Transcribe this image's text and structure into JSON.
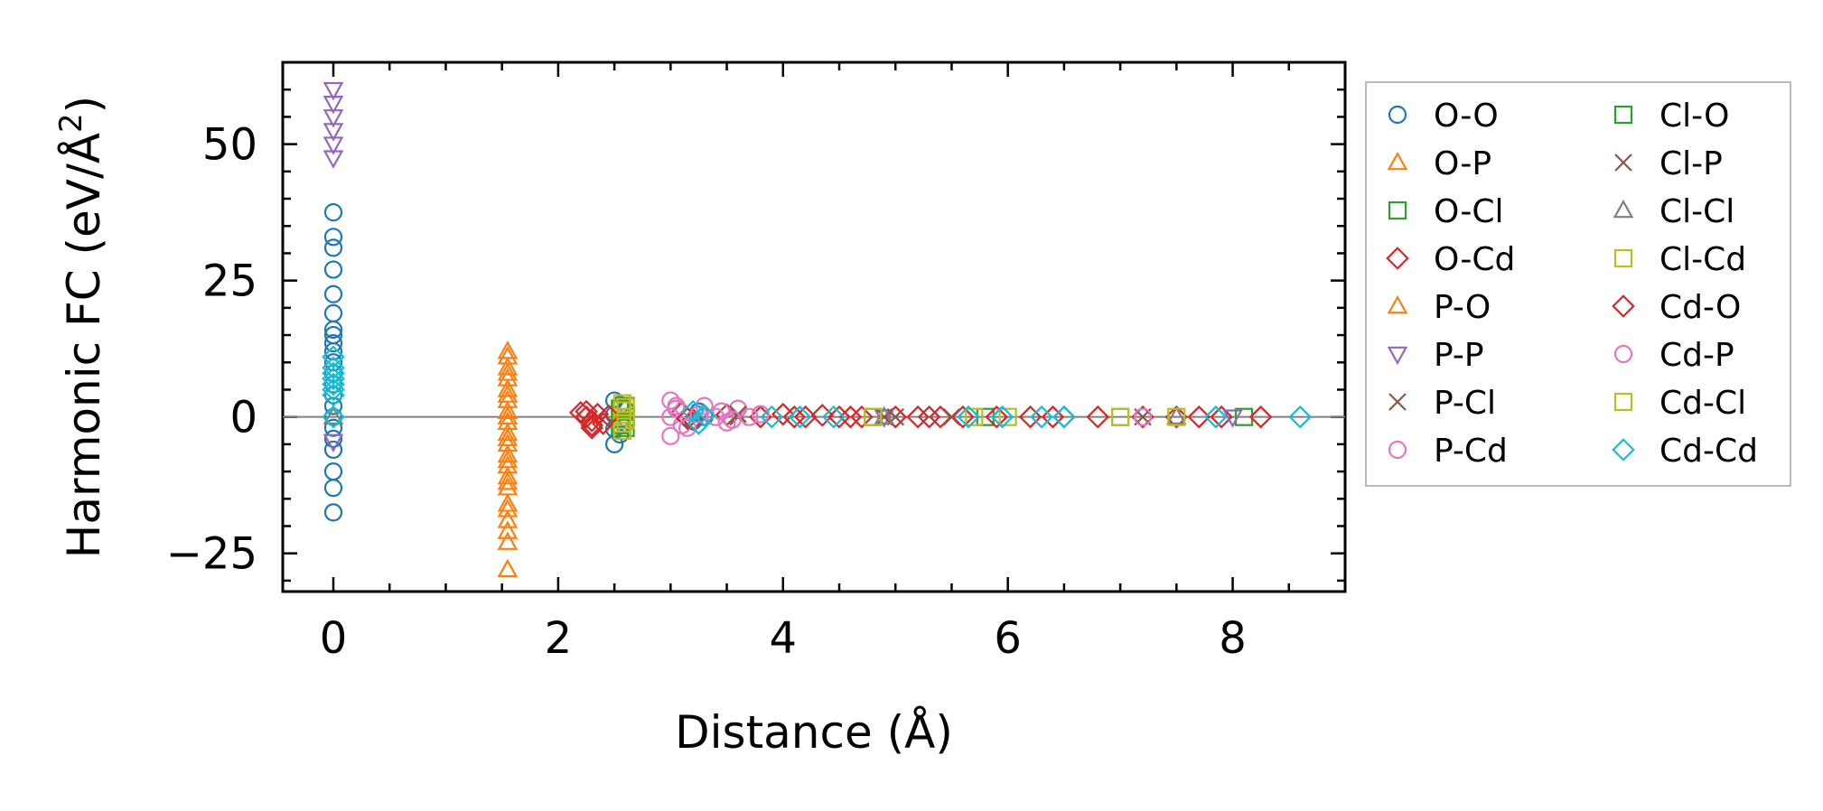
{
  "chart_data": {
    "type": "scatter",
    "xlabel": "Distance (Å)",
    "ylabel_main": "Harmonic FC (eV/Å",
    "ylabel_sup": "2",
    "ylabel_end": ")",
    "xlim": [
      -0.45,
      9.0
    ],
    "ylim": [
      -32,
      65
    ],
    "xticks": [
      0,
      2,
      4,
      6,
      8
    ],
    "xtick_labels": [
      "0",
      "2",
      "4",
      "6",
      "8"
    ],
    "yticks": [
      -25,
      0,
      25,
      50
    ],
    "ytick_labels": [
      "−25",
      "0",
      "25",
      "50"
    ],
    "zero_line": true,
    "grid": false,
    "legend_position": "outside-right",
    "legend_columns": 2,
    "series": [
      {
        "name": "O-O",
        "marker": "circle",
        "color": "#1f77b4",
        "points": [
          [
            0,
            37.5
          ],
          [
            0,
            33
          ],
          [
            0,
            31
          ],
          [
            0,
            27
          ],
          [
            0,
            22.5
          ],
          [
            0,
            19
          ],
          [
            0,
            16
          ],
          [
            0,
            15
          ],
          [
            0,
            13.5
          ],
          [
            0,
            12
          ],
          [
            0,
            10
          ],
          [
            0,
            8
          ],
          [
            0,
            6
          ],
          [
            0,
            4
          ],
          [
            0,
            2
          ],
          [
            0,
            0
          ],
          [
            0,
            -2
          ],
          [
            0,
            -4
          ],
          [
            0,
            -6
          ],
          [
            0,
            -10
          ],
          [
            0,
            -13
          ],
          [
            0,
            -17.5
          ],
          [
            2.5,
            3
          ],
          [
            2.55,
            2.2
          ],
          [
            2.6,
            1.3
          ],
          [
            2.5,
            0.4
          ],
          [
            2.55,
            -0.5
          ],
          [
            2.6,
            -1.2
          ],
          [
            2.5,
            -2.2
          ],
          [
            2.55,
            -3.2
          ],
          [
            2.5,
            -5
          ],
          [
            3.25,
            1
          ],
          [
            3.3,
            0
          ],
          [
            3.2,
            -0.8
          ]
        ]
      },
      {
        "name": "O-P",
        "marker": "triangle-up",
        "color": "#ff7f0e",
        "points": [
          [
            1.55,
            11
          ],
          [
            1.55,
            9
          ],
          [
            1.55,
            7
          ],
          [
            1.55,
            5
          ],
          [
            1.55,
            3
          ],
          [
            1.55,
            1
          ],
          [
            1.55,
            -1
          ],
          [
            1.55,
            -3
          ],
          [
            1.55,
            -5
          ],
          [
            1.55,
            -7
          ],
          [
            1.55,
            -9
          ],
          [
            1.55,
            -11
          ],
          [
            1.55,
            -13
          ],
          [
            1.55,
            -16
          ],
          [
            1.55,
            -19
          ],
          [
            1.55,
            -21
          ],
          [
            1.55,
            -23
          ],
          [
            1.55,
            -28
          ]
        ]
      },
      {
        "name": "O-Cl",
        "marker": "square",
        "color": "#2ca02c",
        "points": [
          [
            2.6,
            2
          ],
          [
            2.6,
            0
          ],
          [
            2.6,
            -2
          ],
          [
            4.8,
            0
          ],
          [
            5.8,
            0
          ],
          [
            7.0,
            0
          ],
          [
            8.1,
            0
          ]
        ]
      },
      {
        "name": "O-Cd",
        "marker": "diamond",
        "color": "#d62728",
        "points": [
          [
            2.2,
            0.8
          ],
          [
            2.25,
            0
          ],
          [
            2.3,
            -0.7
          ],
          [
            2.35,
            0.5
          ],
          [
            2.4,
            -1.2
          ],
          [
            2.3,
            -2
          ],
          [
            3.1,
            0.8
          ],
          [
            3.2,
            -0.5
          ],
          [
            3.5,
            0.4
          ],
          [
            3.8,
            0
          ],
          [
            4.0,
            0.5
          ],
          [
            4.2,
            0
          ],
          [
            4.35,
            0.3
          ],
          [
            4.5,
            0
          ],
          [
            4.7,
            0
          ],
          [
            5.0,
            0
          ],
          [
            5.2,
            0
          ],
          [
            5.4,
            0
          ],
          [
            5.6,
            0
          ],
          [
            5.9,
            0
          ],
          [
            6.2,
            0
          ],
          [
            6.5,
            0
          ],
          [
            6.8,
            0
          ],
          [
            7.2,
            0
          ],
          [
            7.5,
            0
          ],
          [
            7.9,
            0
          ],
          [
            8.25,
            0
          ]
        ]
      },
      {
        "name": "P-O",
        "marker": "triangle-up",
        "color": "#ff7f0e",
        "points": [
          [
            1.55,
            12
          ],
          [
            1.55,
            8
          ],
          [
            1.55,
            4
          ],
          [
            1.55,
            0
          ],
          [
            1.55,
            -4
          ],
          [
            1.55,
            -8
          ],
          [
            1.55,
            -12
          ],
          [
            1.55,
            -17
          ]
        ]
      },
      {
        "name": "P-P",
        "marker": "triangle-down",
        "color": "#9467bd",
        "points": [
          [
            0,
            60
          ],
          [
            0,
            57.5
          ],
          [
            0,
            55
          ],
          [
            0,
            52.5
          ],
          [
            0,
            50
          ],
          [
            0,
            47.5
          ],
          [
            0,
            -4.5
          ],
          [
            4.9,
            0
          ],
          [
            8.0,
            0
          ]
        ]
      },
      {
        "name": "P-Cl",
        "marker": "x",
        "color": "#8c564b",
        "points": [
          [
            3.6,
            0
          ],
          [
            4.9,
            0
          ],
          [
            5.5,
            0
          ],
          [
            7.2,
            0
          ]
        ]
      },
      {
        "name": "P-Cd",
        "marker": "circle",
        "color": "#e377c2",
        "points": [
          [
            3.0,
            3
          ],
          [
            3.05,
            1.5
          ],
          [
            3.0,
            0
          ],
          [
            3.1,
            -1.5
          ],
          [
            3.0,
            -3.5
          ],
          [
            3.3,
            2
          ],
          [
            3.4,
            0
          ],
          [
            3.5,
            -1
          ],
          [
            3.6,
            1.5
          ],
          [
            3.7,
            0
          ],
          [
            3.8,
            0.5
          ],
          [
            7.2,
            0
          ]
        ]
      },
      {
        "name": "Cl-O",
        "marker": "square",
        "color": "#2ca02c",
        "points": [
          [
            2.55,
            1.5
          ],
          [
            2.55,
            -1.5
          ]
        ]
      },
      {
        "name": "Cl-P",
        "marker": "x",
        "color": "#8c564b",
        "points": [
          [
            3.6,
            0.5
          ],
          [
            5.0,
            0
          ]
        ]
      },
      {
        "name": "Cl-Cl",
        "marker": "triangle-up",
        "color": "#7f7f7f",
        "points": [
          [
            0,
            0
          ],
          [
            4.9,
            0
          ],
          [
            7.5,
            0
          ]
        ]
      },
      {
        "name": "Cl-Cd",
        "marker": "square",
        "color": "#bcbd22",
        "points": [
          [
            2.57,
            2.5
          ],
          [
            2.57,
            1.2
          ],
          [
            2.57,
            0
          ],
          [
            2.57,
            -1.2
          ],
          [
            2.57,
            -2.5
          ],
          [
            4.8,
            0
          ],
          [
            6.0,
            0
          ],
          [
            7.0,
            0
          ],
          [
            7.5,
            0
          ]
        ]
      },
      {
        "name": "Cd-O",
        "marker": "diamond",
        "color": "#d62728",
        "points": [
          [
            2.25,
            1
          ],
          [
            2.3,
            -1.5
          ],
          [
            2.45,
            0.2
          ],
          [
            3.15,
            -0.3
          ],
          [
            4.1,
            0
          ],
          [
            4.6,
            0
          ],
          [
            5.3,
            0
          ],
          [
            6.4,
            0
          ],
          [
            7.7,
            0
          ]
        ]
      },
      {
        "name": "Cd-P",
        "marker": "circle",
        "color": "#e377c2",
        "points": [
          [
            3.05,
            2
          ],
          [
            3.15,
            -2
          ],
          [
            3.25,
            0.5
          ],
          [
            3.45,
            1
          ],
          [
            3.55,
            -0.5
          ]
        ]
      },
      {
        "name": "Cd-Cl",
        "marker": "square",
        "color": "#bcbd22",
        "points": [
          [
            2.6,
            1.8
          ],
          [
            2.6,
            -0.6
          ],
          [
            5.7,
            0
          ]
        ]
      },
      {
        "name": "Cd-Cd",
        "marker": "diamond",
        "color": "#17becf",
        "points": [
          [
            0,
            11
          ],
          [
            0,
            9
          ],
          [
            0,
            8
          ],
          [
            0,
            7
          ],
          [
            0,
            6
          ],
          [
            0,
            5
          ],
          [
            0,
            4
          ],
          [
            0,
            0
          ],
          [
            3.2,
            1
          ],
          [
            3.25,
            -1.2
          ],
          [
            3.3,
            0.3
          ],
          [
            3.9,
            0
          ],
          [
            4.15,
            0
          ],
          [
            4.45,
            0
          ],
          [
            5.65,
            0
          ],
          [
            5.95,
            0
          ],
          [
            6.3,
            0
          ],
          [
            6.5,
            0
          ],
          [
            7.85,
            0
          ],
          [
            8.6,
            0
          ]
        ]
      }
    ]
  }
}
